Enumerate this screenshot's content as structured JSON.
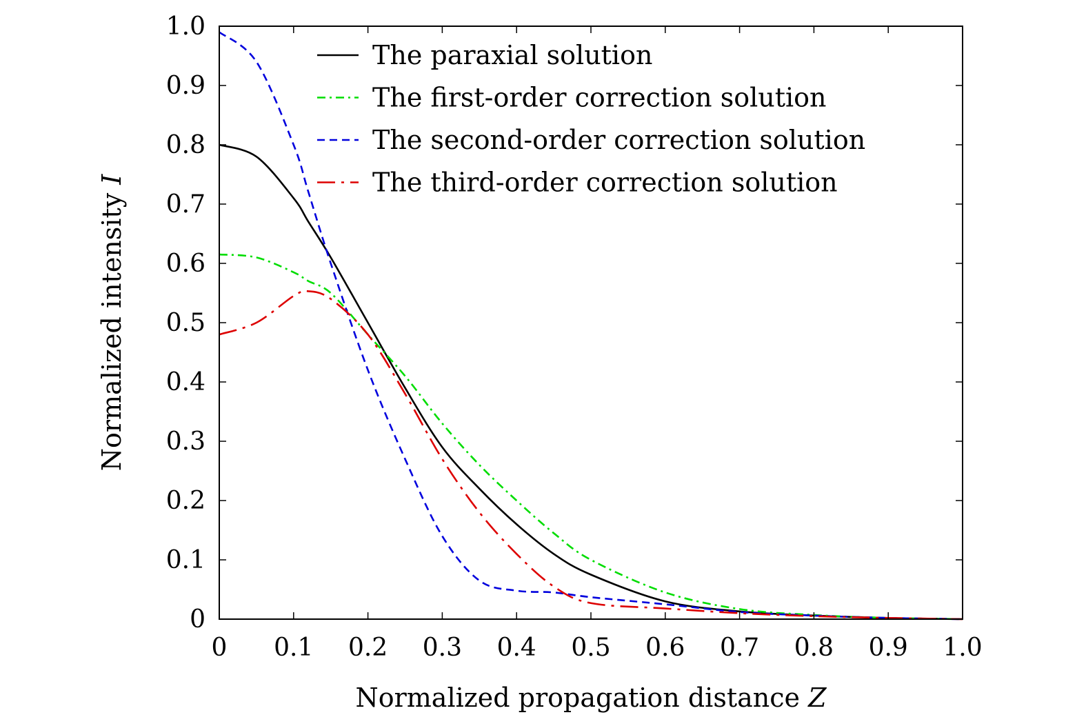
{
  "chart_data": {
    "type": "line",
    "title": "",
    "xlabel": "Normalized propagation distance",
    "xlabel_symbol": "Z",
    "ylabel": "Normalized intensity",
    "ylabel_symbol": "I",
    "xlim": [
      0,
      1.0
    ],
    "ylim": [
      0,
      1.0
    ],
    "xticks": [
      "0",
      "0.1",
      "0.2",
      "0.3",
      "0.4",
      "0.5",
      "0.6",
      "0.7",
      "0.8",
      "0.9",
      "1.0"
    ],
    "yticks": [
      "0",
      "0.1",
      "0.2",
      "0.3",
      "0.4",
      "0.5",
      "0.6",
      "0.7",
      "0.8",
      "0.9",
      "1.0"
    ],
    "grid": false,
    "legend_position": "top-right",
    "x": [
      0,
      0.05,
      0.1,
      0.12,
      0.15,
      0.2,
      0.25,
      0.3,
      0.35,
      0.4,
      0.45,
      0.5,
      0.6,
      0.7,
      0.8,
      0.9,
      1.0
    ],
    "series": [
      {
        "name": "The paraxial solution",
        "color": "#000000",
        "dash": "solid",
        "values": [
          0.8,
          0.78,
          0.71,
          0.67,
          0.61,
          0.5,
          0.39,
          0.29,
          0.22,
          0.16,
          0.11,
          0.075,
          0.03,
          0.013,
          0.006,
          0.002,
          0.0
        ]
      },
      {
        "name": "The first-order correction solution",
        "color": "#00dd00",
        "dash": "dash-dot",
        "values": [
          0.615,
          0.61,
          0.585,
          0.57,
          0.55,
          0.48,
          0.41,
          0.33,
          0.26,
          0.2,
          0.145,
          0.1,
          0.045,
          0.017,
          0.007,
          0.002,
          0.0
        ]
      },
      {
        "name": "The second-order correction solution",
        "color": "#0000dd",
        "dash": "dashed",
        "values": [
          0.99,
          0.94,
          0.8,
          0.72,
          0.6,
          0.42,
          0.27,
          0.14,
          0.065,
          0.048,
          0.045,
          0.037,
          0.025,
          0.012,
          0.006,
          0.002,
          0.0
        ]
      },
      {
        "name": "The third-order correction solution",
        "color": "#dd0000",
        "dash": "long-dash-dot",
        "values": [
          0.48,
          0.5,
          0.545,
          0.553,
          0.54,
          0.48,
          0.38,
          0.27,
          0.18,
          0.11,
          0.055,
          0.027,
          0.018,
          0.01,
          0.005,
          0.002,
          0.0
        ]
      }
    ]
  }
}
